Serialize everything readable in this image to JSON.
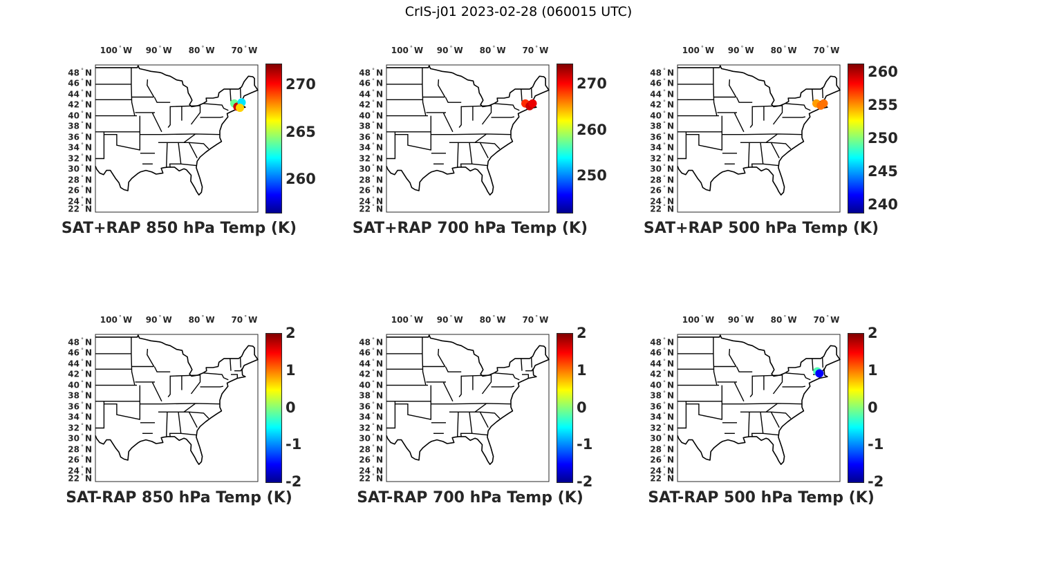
{
  "title": "CrIS-j01 2023-02-28 (060015 UTC)",
  "lon_labels": [
    "100",
    "90",
    "80",
    "70"
  ],
  "lon_hemisphere": "W",
  "lat_labels": [
    "48",
    "46",
    "44",
    "42",
    "40",
    "38",
    "36",
    "34",
    "32",
    "30",
    "28",
    "26",
    "24",
    "22"
  ],
  "lat_hemisphere": "N",
  "panels": [
    {
      "title": "SAT+RAP 850 hPa Temp (K)",
      "colorbar_ticks": [
        "270",
        "265",
        "260"
      ],
      "colorbar_range": [
        256.5,
        272.2
      ],
      "points": [
        {
          "lon": -72.5,
          "lat": 42.3,
          "value": 264
        },
        {
          "lon": -71.8,
          "lat": 41.7,
          "value": 271
        },
        {
          "lon": -70.8,
          "lat": 42.5,
          "value": 262
        },
        {
          "lon": -71.2,
          "lat": 41.5,
          "value": 267
        }
      ]
    },
    {
      "title": "SAT+RAP 700 hPa Temp (K)",
      "colorbar_ticks": [
        "270",
        "260",
        "250"
      ],
      "colorbar_range": [
        242.1,
        274.4
      ],
      "points": [
        {
          "lon": -72.5,
          "lat": 42.3,
          "value": 269
        },
        {
          "lon": -71.5,
          "lat": 41.8,
          "value": 272
        },
        {
          "lon": -70.8,
          "lat": 42.3,
          "value": 271
        }
      ]
    },
    {
      "title": "SAT+RAP 500 hPa Temp (K)",
      "colorbar_ticks": [
        "260",
        "255",
        "250",
        "245",
        "240"
      ],
      "colorbar_range": [
        238.8,
        261.3
      ],
      "points": [
        {
          "lon": -72.5,
          "lat": 42.3,
          "value": 255
        },
        {
          "lon": -71.5,
          "lat": 41.9,
          "value": 256
        },
        {
          "lon": -70.8,
          "lat": 42.3,
          "value": 256
        }
      ]
    },
    {
      "title": "SAT-RAP 850 hPa Temp (K)",
      "colorbar_ticks": [
        "2",
        "1",
        "0",
        "-1",
        "-2"
      ],
      "colorbar_range": [
        -2,
        2
      ],
      "points": []
    },
    {
      "title": "SAT-RAP 700 hPa Temp (K)",
      "colorbar_ticks": [
        "2",
        "1",
        "0",
        "-1",
        "-2"
      ],
      "colorbar_range": [
        -2,
        2
      ],
      "points": []
    },
    {
      "title": "SAT-RAP 500 hPa Temp (K)",
      "colorbar_ticks": [
        "2",
        "1",
        "0",
        "-1",
        "-2"
      ],
      "colorbar_range": [
        -2,
        2
      ],
      "points": [
        {
          "lon": -72.3,
          "lat": 42.6,
          "value": -0.2
        },
        {
          "lon": -71.8,
          "lat": 42.2,
          "value": -1.5
        }
      ]
    }
  ],
  "colormap": "jet",
  "map_extent": {
    "lon": [
      -105,
      -67
    ],
    "lat": [
      22,
      49.5
    ]
  }
}
